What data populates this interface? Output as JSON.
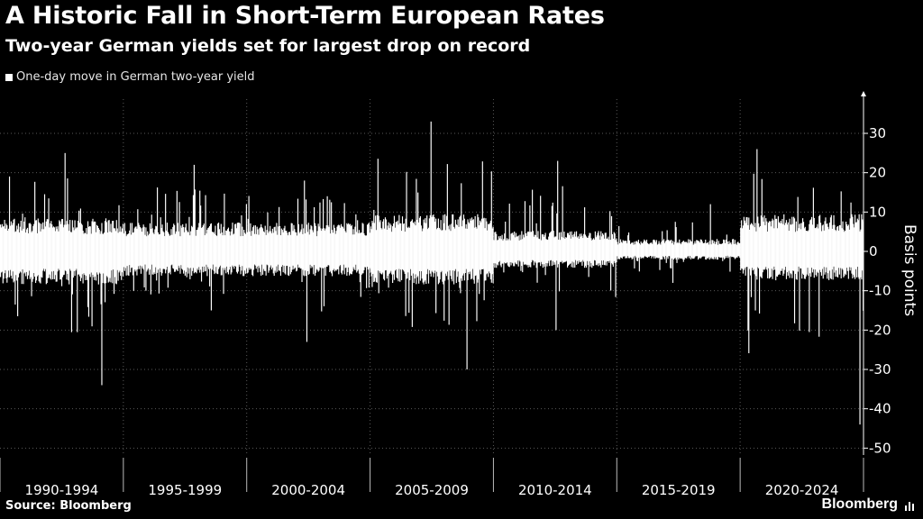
{
  "chart_data": {
    "type": "bar",
    "title": "A Historic Fall in Short-Term European Rates",
    "subtitle": "Two-year German yields set for largest drop on record",
    "legend": [
      "One-day move in German two-year yield"
    ],
    "ylabel": "Basis points",
    "ylim": [
      -50,
      35
    ],
    "yticks": [
      30,
      20,
      10,
      0,
      -10,
      -20,
      -30,
      -40,
      -50
    ],
    "categories": [
      "1990-1994",
      "1995-1999",
      "2000-2004",
      "2005-2009",
      "2010-2014",
      "2015-2019",
      "2020-2024"
    ],
    "series": [
      {
        "name": "One-day move in German two-year yield",
        "period_ranges": [
          {
            "period": "1990-1994",
            "typical_low": -8,
            "typical_high": 8,
            "max": 25,
            "min": -34
          },
          {
            "period": "1995-1999",
            "typical_low": -6,
            "typical_high": 7,
            "max": 22,
            "min": -15
          },
          {
            "period": "2000-2004",
            "typical_low": -6,
            "typical_high": 7,
            "max": 18,
            "min": -23
          },
          {
            "period": "2005-2009",
            "typical_low": -8,
            "typical_high": 9,
            "max": 33,
            "min": -30
          },
          {
            "period": "2010-2014",
            "typical_low": -4,
            "typical_high": 5,
            "max": 23,
            "min": -20
          },
          {
            "period": "2015-2019",
            "typical_low": -2,
            "typical_high": 3,
            "max": 12,
            "min": -8
          },
          {
            "period": "2020-2024",
            "typical_low": -7,
            "typical_high": 9,
            "max": 26,
            "min": -44
          }
        ]
      }
    ],
    "source": "Source: Bloomberg",
    "logo": "Bloomberg"
  }
}
